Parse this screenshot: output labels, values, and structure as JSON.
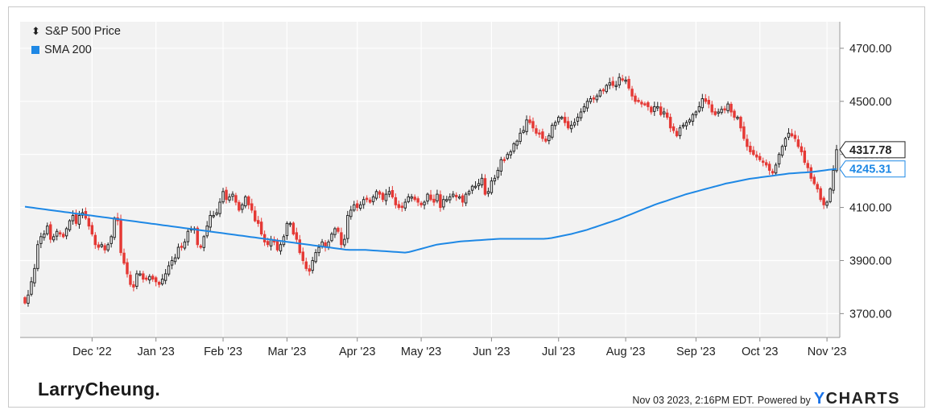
{
  "legend": {
    "price_label": "S&P 500 Price",
    "sma_label": "SMA 200",
    "price_icon": "candlestick-icon",
    "sma_color": "#1e88e5"
  },
  "brand": "LarryCheung.",
  "footer": {
    "timestamp": "Nov 03 2023, 2:16PM EDT.",
    "powered_by": "Powered by",
    "ycharts_y": "Y",
    "ycharts_rest": "CHARTS"
  },
  "chart_data": {
    "type": "candlestick",
    "title": "",
    "x_ticks": [
      "Dec '22",
      "Jan '23",
      "Feb '23",
      "Mar '23",
      "Apr '23",
      "May '23",
      "Jun '23",
      "Jul '23",
      "Aug '23",
      "Sep '23",
      "Oct '23",
      "Nov '23"
    ],
    "y_ticks": [
      "3700.00",
      "3900.00",
      "4100.00",
      "4300.00",
      "4500.00",
      "4700.00"
    ],
    "ylim": [
      3610,
      4800
    ],
    "grid": true,
    "legend_position": "top-left",
    "up_color": "#222222",
    "down_color": "#e53935",
    "sma_color": "#1e88e5",
    "last_price_label": "4317.78",
    "last_sma_label": "4245.31",
    "price_close": [
      3740,
      3770,
      3820,
      3870,
      3960,
      3990,
      4000,
      4030,
      3980,
      3990,
      4010,
      4000,
      3990,
      4020,
      4050,
      4070,
      4040,
      4070,
      4080,
      4060,
      4030,
      4000,
      3960,
      3950,
      3960,
      3940,
      3960,
      3990,
      4060,
      4050,
      3930,
      3890,
      3850,
      3810,
      3800,
      3850,
      3850,
      3830,
      3830,
      3840,
      3830,
      3820,
      3810,
      3830,
      3850,
      3880,
      3900,
      3910,
      3950,
      3950,
      3970,
      4010,
      4020,
      4020,
      3960,
      3950,
      3990,
      4030,
      4070,
      4070,
      4080,
      4120,
      4160,
      4130,
      4140,
      4150,
      4120,
      4090,
      4110,
      4140,
      4110,
      4090,
      4050,
      4040,
      4000,
      3970,
      3960,
      3980,
      3970,
      3940,
      3960,
      3990,
      4040,
      4040,
      4000,
      3980,
      3930,
      3900,
      3870,
      3860,
      3900,
      3930,
      3950,
      3970,
      3950,
      3970,
      4000,
      4020,
      4010,
      3960,
      3980,
      4070,
      4090,
      4110,
      4100,
      4110,
      4130,
      4130,
      4120,
      4140,
      4160,
      4150,
      4130,
      4150,
      4160,
      4140,
      4110,
      4100,
      4100,
      4120,
      4140,
      4140,
      4130,
      4120,
      4110,
      4120,
      4150,
      4130,
      4120,
      4150,
      4100,
      4130,
      4130,
      4140,
      4150,
      4140,
      4140,
      4120,
      4150,
      4160,
      4180,
      4180,
      4190,
      4210,
      4150,
      4160,
      4200,
      4210,
      4240,
      4280,
      4280,
      4300,
      4310,
      4340,
      4350,
      4380,
      4390,
      4430,
      4420,
      4400,
      4380,
      4380,
      4360,
      4350,
      4370,
      4410,
      4420,
      4440,
      4440,
      4420,
      4400,
      4410,
      4420,
      4440,
      4460,
      4480,
      4500,
      4510,
      4510,
      4520,
      4540,
      4540,
      4560,
      4570,
      4560,
      4560,
      4590,
      4580,
      4580,
      4550,
      4520,
      4500,
      4500,
      4490,
      4490,
      4480,
      4460,
      4480,
      4480,
      4450,
      4460,
      4440,
      4400,
      4390,
      4370,
      4400,
      4410,
      4420,
      4430,
      4450,
      4460,
      4480,
      4510,
      4500,
      4490,
      4460,
      4450,
      4460,
      4470,
      4470,
      4490,
      4460,
      4440,
      4440,
      4400,
      4360,
      4330,
      4310,
      4300,
      4290,
      4280,
      4270,
      4260,
      4240,
      4230,
      4260,
      4300,
      4330,
      4360,
      4380,
      4370,
      4360,
      4330,
      4310,
      4270,
      4250,
      4210,
      4190,
      4170,
      4130,
      4110,
      4120,
      4170,
      4240,
      4317.78
    ],
    "sma_200": [
      4103,
      4101,
      4099,
      4097,
      4095,
      4093,
      4091,
      4089,
      4087,
      4085,
      4083,
      4081,
      4079,
      4077,
      4075,
      4073,
      4071,
      4069,
      4067,
      4065,
      4063,
      4061,
      4059,
      4057,
      4055,
      4053,
      4051,
      4049,
      4047,
      4045,
      4043,
      4041,
      4039,
      4037,
      4035,
      4033,
      4031,
      4029,
      4027,
      4025,
      4023,
      4021,
      4019,
      4017,
      4015,
      4013,
      4011,
      4009,
      4007,
      4005,
      4003,
      4001,
      3999,
      3997,
      3995,
      3993,
      3991,
      3989,
      3987,
      3985,
      3983,
      3981,
      3979,
      3977,
      3975,
      3973,
      3971,
      3969,
      3967,
      3965,
      3963,
      3961,
      3959,
      3957,
      3955,
      3953,
      3951,
      3949,
      3947,
      3945,
      3943,
      3941,
      3940,
      3940,
      3940,
      3940,
      3940,
      3939,
      3938,
      3937,
      3936,
      3935,
      3934,
      3933,
      3932,
      3931,
      3930,
      3932,
      3936,
      3940,
      3944,
      3948,
      3952,
      3956,
      3960,
      3962,
      3964,
      3966,
      3968,
      3970,
      3972,
      3973,
      3974,
      3975,
      3976,
      3977,
      3978,
      3979,
      3980,
      3981,
      3982,
      3982,
      3982,
      3982,
      3982,
      3982,
      3982,
      3982,
      3982,
      3982,
      3982,
      3982,
      3983,
      3985,
      3988,
      3991,
      3994,
      3997,
      4000,
      4004,
      4008,
      4012,
      4016,
      4021,
      4026,
      4031,
      4036,
      4041,
      4046,
      4051,
      4056,
      4062,
      4068,
      4074,
      4080,
      4086,
      4092,
      4098,
      4104,
      4110,
      4115,
      4120,
      4125,
      4130,
      4135,
      4140,
      4145,
      4150,
      4154,
      4158,
      4162,
      4166,
      4170,
      4174,
      4178,
      4182,
      4186,
      4190,
      4193,
      4196,
      4199,
      4202,
      4205,
      4208,
      4210,
      4212,
      4214,
      4216,
      4218,
      4220,
      4222,
      4224,
      4226,
      4228,
      4229,
      4230,
      4231,
      4232,
      4233,
      4234,
      4236,
      4238,
      4240,
      4242,
      4244,
      4245.31
    ]
  }
}
